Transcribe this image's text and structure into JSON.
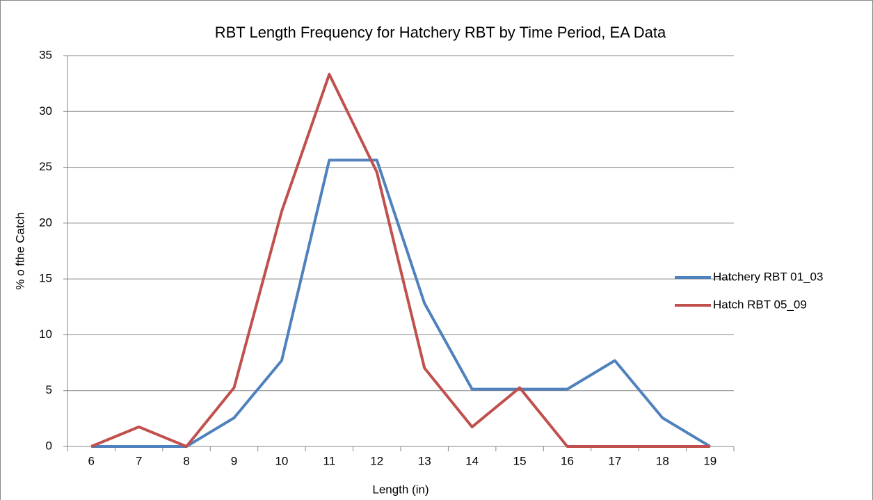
{
  "chart_data": {
    "type": "line",
    "title": "RBT Length Frequency for Hatchery RBT by Time Period, EA Data",
    "x_label": "Length (in)",
    "y_label": "% o fthe Catch",
    "categories": [
      "6",
      "7",
      "8",
      "9",
      "10",
      "11",
      "12",
      "13",
      "14",
      "15",
      "16",
      "17",
      "18",
      "19"
    ],
    "series": [
      {
        "name": "Hatchery RBT 01_03",
        "color": "#4f81bd",
        "values": [
          0,
          0,
          0,
          2.56,
          7.69,
          25.64,
          25.64,
          12.82,
          5.13,
          5.13,
          5.13,
          7.69,
          2.56,
          0
        ]
      },
      {
        "name": "Hatch RBT 05_09",
        "color": "#c0504d",
        "values": [
          0,
          1.75,
          0,
          5.26,
          21.05,
          33.33,
          24.56,
          7.02,
          1.75,
          5.26,
          0,
          0,
          0,
          0
        ]
      }
    ],
    "ylim": [
      0,
      35
    ],
    "yticks": [
      0,
      5,
      10,
      15,
      20,
      25,
      30,
      35
    ],
    "grid": true,
    "legend": "right"
  }
}
